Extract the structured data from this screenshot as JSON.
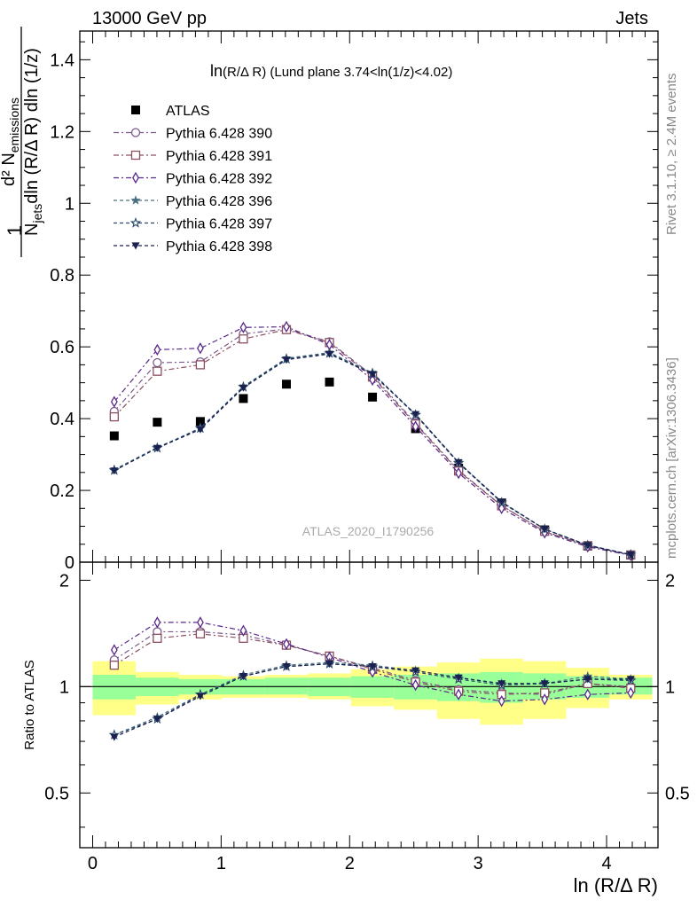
{
  "header": {
    "left": "13000 GeV pp",
    "right": "Jets"
  },
  "side_text": {
    "rivet": "Rivet 3.1.10, ≥ 2.4M events",
    "mcplots": "mcplots.cern.ch [arXiv:1306.3436]"
  },
  "watermark": "ATLAS_2020_I1790256",
  "colors": {
    "data": "#000000",
    "band_inner": "#99ff99",
    "band_outer": "#ffff88",
    "p390": "#7a5a8a",
    "p391": "#8a5060",
    "p392": "#5a2a8a",
    "p396": "#4a7080",
    "p397": "#2a4a6a",
    "p398": "#1a2050"
  },
  "chart_data": [
    {
      "type": "scatter",
      "title": "ln(R/Δ R) (Lund plane 3.74<ln(1/z)<4.02)",
      "title_main": "ln",
      "title_rest": "(R/Δ R) (Lund plane 3.74<ln(1/z)<4.02)",
      "ylabel_num": "d² N",
      "ylabel_num_sub": "emissions",
      "ylabel_den_pre": "N",
      "ylabel_den_sub": "jets",
      "ylabel_den_post": "dln (R/Δ R) dln (1/z)",
      "ylabel_one": "1",
      "xlim": [
        -0.1,
        4.4
      ],
      "ylim": [
        0,
        1.48
      ],
      "y_ticks": [
        0,
        0.2,
        0.4,
        0.6,
        0.8,
        1,
        1.2,
        1.4
      ],
      "y_tick_labels": [
        "0",
        "0.2",
        "0.4",
        "0.6",
        "0.8",
        "1",
        "1.2",
        "1.4"
      ],
      "x": [
        0.168,
        0.503,
        0.838,
        1.173,
        1.508,
        1.843,
        2.178,
        2.513,
        2.848,
        3.183,
        3.518,
        3.853,
        4.188
      ],
      "series": [
        {
          "name": "ATLAS",
          "key": "data",
          "marker": "square-filled",
          "dash": "none",
          "values": [
            0.352,
            0.39,
            0.392,
            0.456,
            0.496,
            0.502,
            0.46,
            0.372,
            0.262,
            0.165,
            0.09,
            0.045,
            0.02
          ]
        },
        {
          "name": "Pythia 6.428 390",
          "key": "p390",
          "marker": "circle-open",
          "dash": "dashdot",
          "values": [
            0.42,
            0.556,
            0.558,
            0.636,
            0.65,
            0.614,
            0.52,
            0.388,
            0.256,
            0.158,
            0.085,
            0.046,
            0.02
          ]
        },
        {
          "name": "Pythia 6.428 391",
          "key": "p391",
          "marker": "square-open",
          "dash": "dashdot",
          "values": [
            0.405,
            0.532,
            0.55,
            0.622,
            0.648,
            0.612,
            0.516,
            0.385,
            0.254,
            0.157,
            0.086,
            0.046,
            0.02
          ]
        },
        {
          "name": "Pythia 6.428 392",
          "key": "p392",
          "marker": "diamond-open",
          "dash": "dashdot",
          "values": [
            0.447,
            0.592,
            0.596,
            0.654,
            0.656,
            0.606,
            0.508,
            0.378,
            0.248,
            0.15,
            0.082,
            0.043,
            0.019
          ]
        },
        {
          "name": "Pythia 6.428 396",
          "key": "p396",
          "marker": "star-filled",
          "dash": "dash",
          "values": [
            0.258,
            0.32,
            0.372,
            0.49,
            0.568,
            0.584,
            0.528,
            0.412,
            0.278,
            0.167,
            0.092,
            0.048,
            0.021
          ]
        },
        {
          "name": "Pythia 6.428 397",
          "key": "p397",
          "marker": "star-open",
          "dash": "dash",
          "values": [
            0.256,
            0.318,
            0.374,
            0.488,
            0.566,
            0.582,
            0.526,
            0.41,
            0.276,
            0.166,
            0.092,
            0.047,
            0.021
          ]
        },
        {
          "name": "Pythia 6.428 398",
          "key": "p398",
          "marker": "triangle-down-filled",
          "dash": "dash",
          "values": [
            0.255,
            0.318,
            0.37,
            0.486,
            0.564,
            0.58,
            0.524,
            0.412,
            0.278,
            0.168,
            0.092,
            0.047,
            0.021
          ]
        }
      ]
    },
    {
      "type": "line",
      "ylabel": "Ratio to ATLAS",
      "xlabel": "ln (R/Δ R)",
      "xlim": [
        -0.1,
        4.4
      ],
      "ylim": [
        0.35,
        2.25
      ],
      "y_ticks": [
        0.5,
        1,
        2
      ],
      "y_tick_labels": [
        "0.5",
        "1",
        "2"
      ],
      "x_ticks": [
        0,
        1,
        2,
        3,
        4
      ],
      "x_tick_labels": [
        "0",
        "1",
        "2",
        "3",
        "4"
      ],
      "bin_edges": [
        0,
        0.335,
        0.67,
        1.005,
        1.34,
        1.675,
        2.01,
        2.345,
        2.68,
        3.015,
        3.35,
        3.685,
        4.02,
        4.355
      ],
      "band_inner": [
        [
          0.92,
          1.08
        ],
        [
          0.94,
          1.06
        ],
        [
          0.95,
          1.05
        ],
        [
          0.95,
          1.05
        ],
        [
          0.95,
          1.06
        ],
        [
          0.94,
          1.06
        ],
        [
          0.93,
          1.07
        ],
        [
          0.92,
          1.08
        ],
        [
          0.91,
          1.09
        ],
        [
          0.9,
          1.1
        ],
        [
          0.92,
          1.09
        ],
        [
          0.93,
          1.07
        ],
        [
          0.95,
          1.06
        ]
      ],
      "band_outer": [
        [
          0.83,
          1.18
        ],
        [
          0.89,
          1.1
        ],
        [
          0.92,
          1.08
        ],
        [
          0.93,
          1.07
        ],
        [
          0.93,
          1.08
        ],
        [
          0.92,
          1.09
        ],
        [
          0.88,
          1.12
        ],
        [
          0.86,
          1.14
        ],
        [
          0.81,
          1.17
        ],
        [
          0.78,
          1.2
        ],
        [
          0.81,
          1.18
        ],
        [
          0.87,
          1.13
        ],
        [
          0.92,
          1.08
        ]
      ],
      "series": [
        {
          "name": "Pythia 6.428 390",
          "key": "p390",
          "marker": "circle-open",
          "dash": "dashdot",
          "values": [
            1.19,
            1.43,
            1.43,
            1.4,
            1.31,
            1.22,
            1.13,
            1.04,
            0.98,
            0.96,
            0.95,
            1.02,
            1.0
          ]
        },
        {
          "name": "Pythia 6.428 391",
          "key": "p391",
          "marker": "square-open",
          "dash": "dashdot",
          "values": [
            1.15,
            1.37,
            1.41,
            1.37,
            1.31,
            1.22,
            1.12,
            1.03,
            0.97,
            0.95,
            0.96,
            1.02,
            0.99
          ]
        },
        {
          "name": "Pythia 6.428 392",
          "key": "p392",
          "marker": "diamond-open",
          "dash": "dashdot",
          "values": [
            1.27,
            1.52,
            1.52,
            1.44,
            1.32,
            1.21,
            1.1,
            1.01,
            0.95,
            0.91,
            0.92,
            0.95,
            0.96
          ]
        },
        {
          "name": "Pythia 6.428 396",
          "key": "p396",
          "marker": "star-filled",
          "dash": "dash",
          "values": [
            0.73,
            0.82,
            0.95,
            1.08,
            1.15,
            1.17,
            1.15,
            1.11,
            1.06,
            1.02,
            1.02,
            1.07,
            1.05
          ]
        },
        {
          "name": "Pythia 6.428 397",
          "key": "p397",
          "marker": "star-open",
          "dash": "dash",
          "values": [
            0.73,
            0.81,
            0.95,
            1.07,
            1.14,
            1.16,
            1.14,
            1.1,
            1.05,
            1.01,
            1.02,
            1.05,
            1.04
          ]
        },
        {
          "name": "Pythia 6.428 398",
          "key": "p398",
          "marker": "triangle-down-filled",
          "dash": "dash",
          "values": [
            0.72,
            0.81,
            0.94,
            1.07,
            1.14,
            1.16,
            1.14,
            1.11,
            1.06,
            1.02,
            1.02,
            1.05,
            1.05
          ]
        }
      ]
    }
  ]
}
